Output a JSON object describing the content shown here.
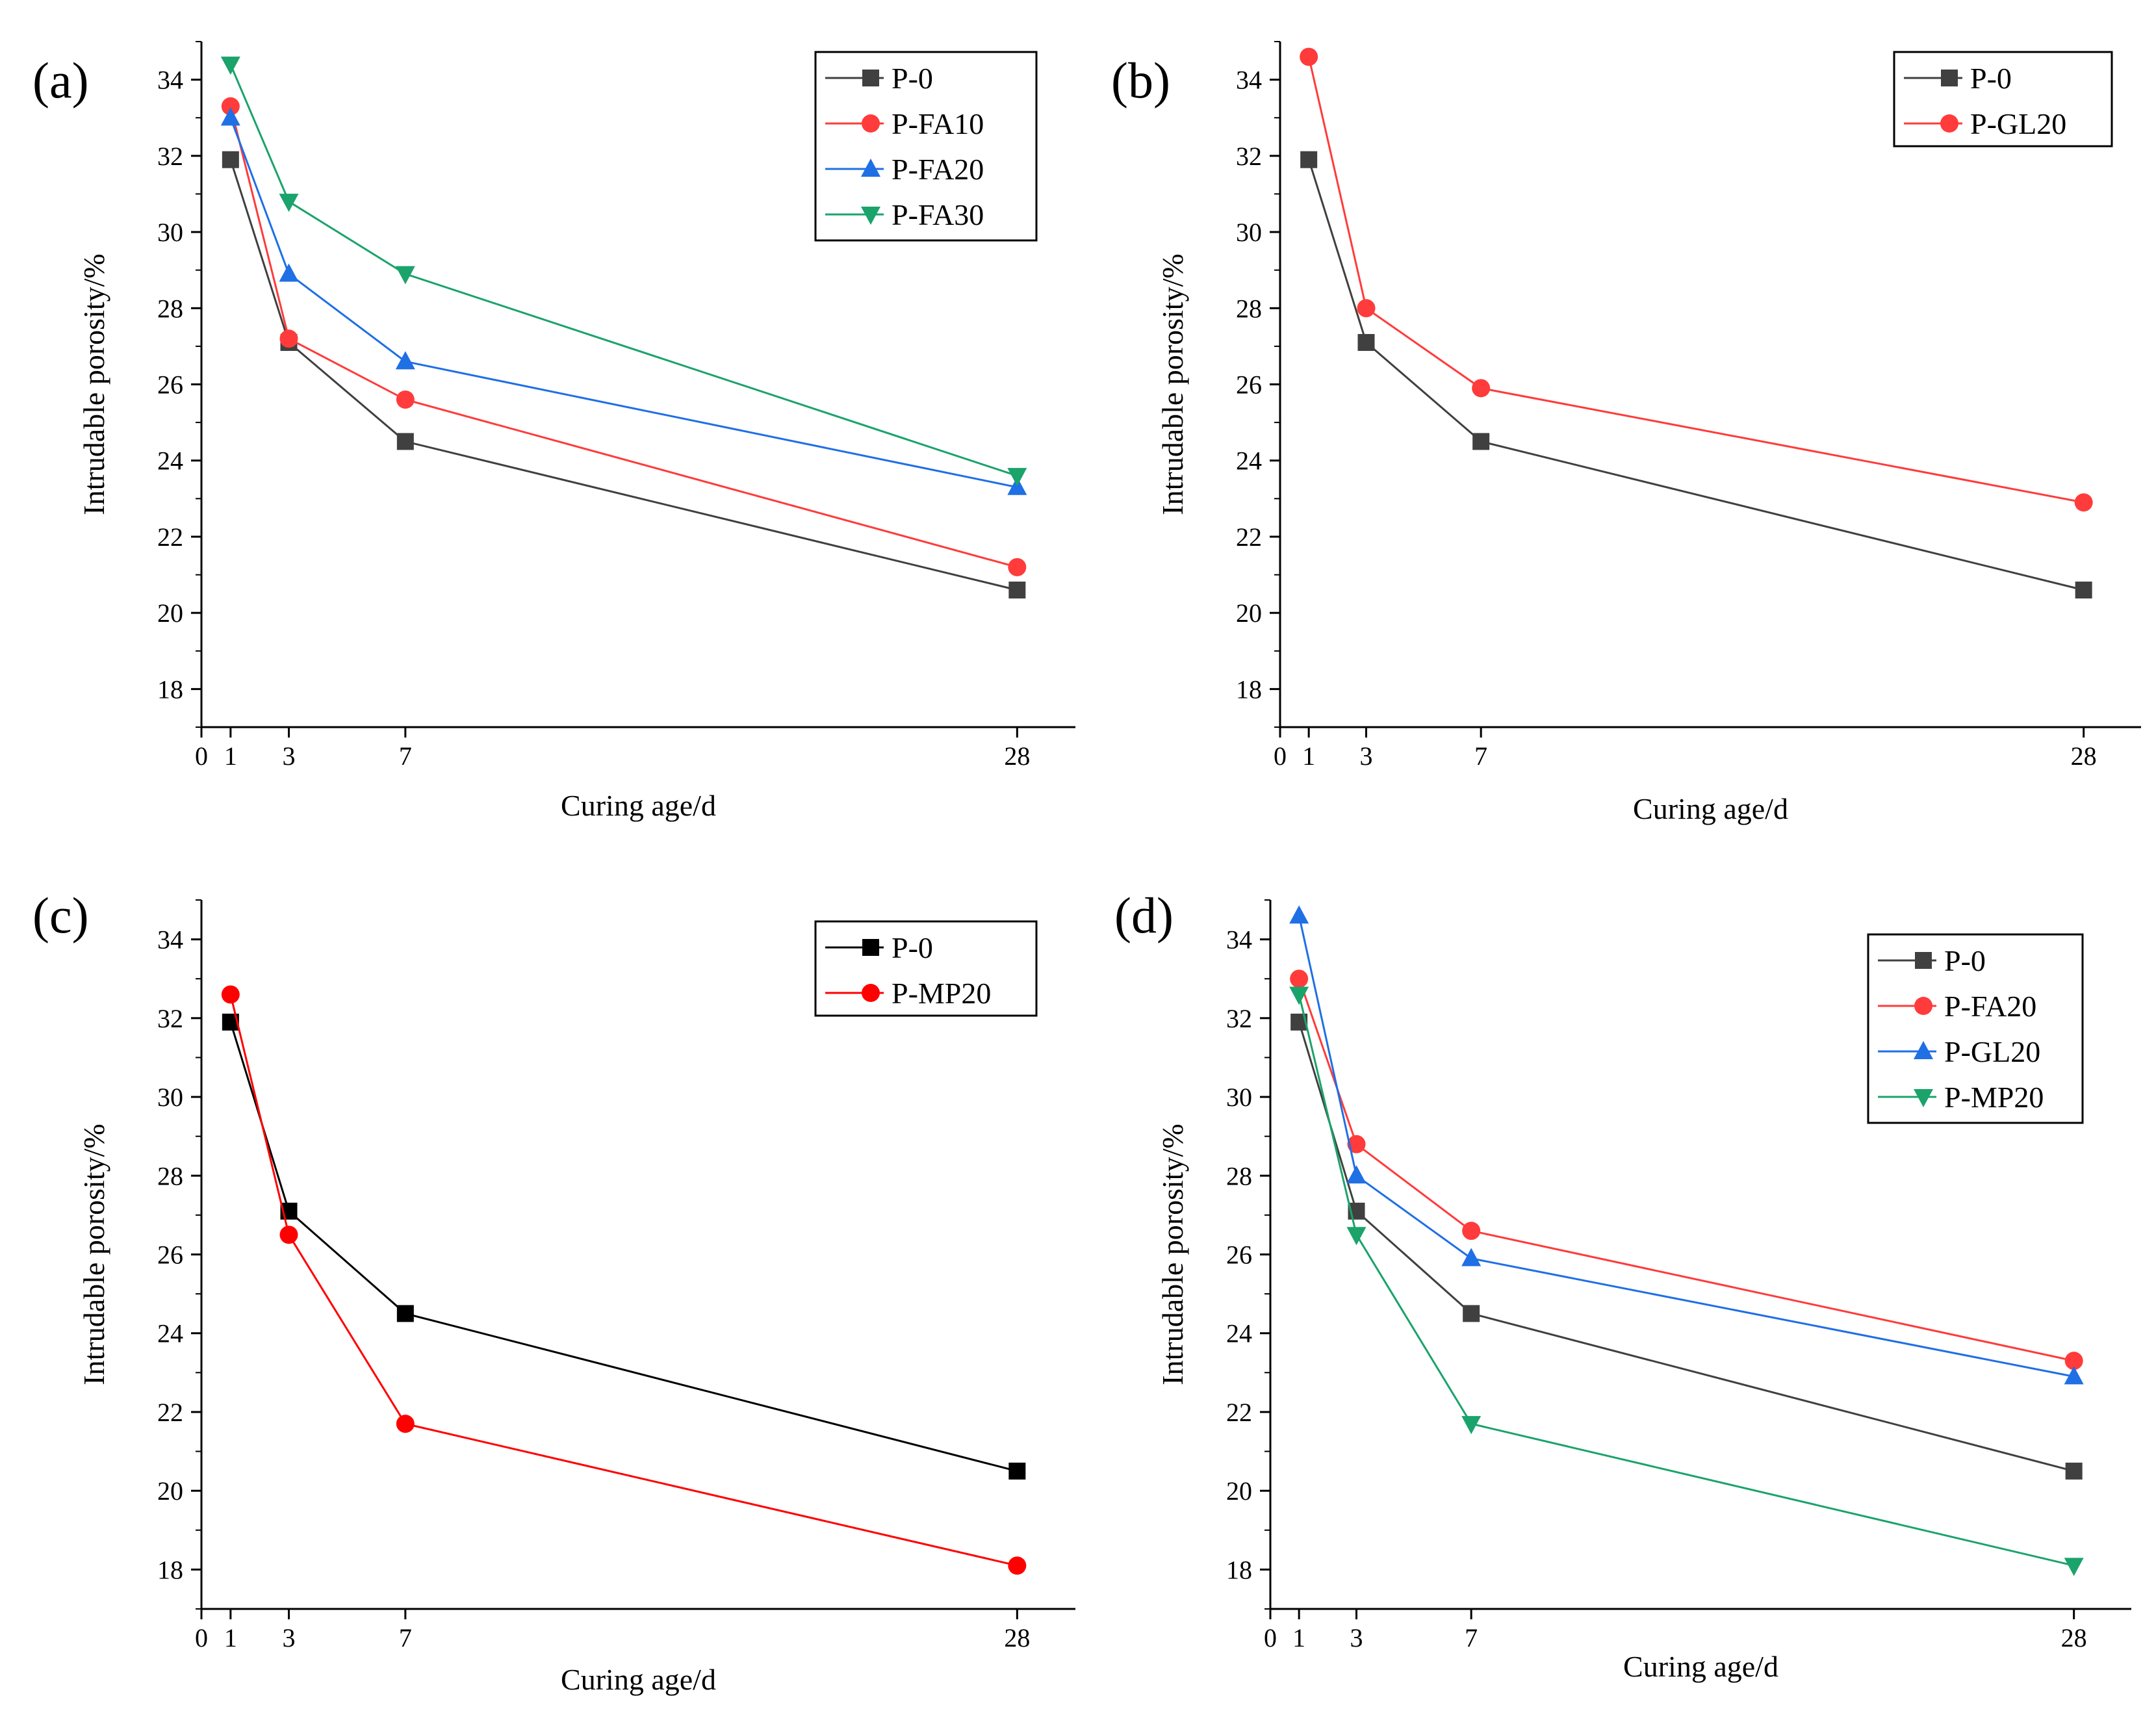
{
  "chart_data": [
    {
      "panel_label": "(a)",
      "type": "line",
      "xlabel": "Curing age/d",
      "ylabel": "Intrudable porosity/%",
      "xlim": [
        0,
        30
      ],
      "ylim": [
        17,
        35
      ],
      "x_ticks": [
        0,
        1,
        3,
        7,
        28
      ],
      "y_ticks": [
        18,
        20,
        22,
        24,
        26,
        28,
        30,
        32,
        34
      ],
      "legend_position": "top-right",
      "x": [
        1,
        3,
        7,
        28
      ],
      "series": [
        {
          "name": "P-0",
          "color": "#404040",
          "marker": "square",
          "values": [
            31.9,
            27.1,
            24.5,
            20.6
          ]
        },
        {
          "name": "P-FA10",
          "color": "#ff3b3b",
          "marker": "circle",
          "values": [
            33.3,
            27.2,
            25.6,
            21.2
          ]
        },
        {
          "name": "P-FA20",
          "color": "#1f6fe5",
          "marker": "triangle-up",
          "values": [
            33.0,
            28.9,
            26.6,
            23.3
          ]
        },
        {
          "name": "P-FA30",
          "color": "#1aa36b",
          "marker": "triangle-down",
          "values": [
            34.4,
            30.8,
            28.9,
            23.6
          ]
        }
      ]
    },
    {
      "panel_label": "(b)",
      "type": "line",
      "xlabel": "Curing age/d",
      "ylabel": "Intrudable porosity/%",
      "xlim": [
        0,
        30
      ],
      "ylim": [
        17,
        35
      ],
      "x_ticks": [
        0,
        1,
        3,
        7,
        28
      ],
      "y_ticks": [
        18,
        20,
        22,
        24,
        26,
        28,
        30,
        32,
        34
      ],
      "legend_position": "top-right",
      "x": [
        1,
        3,
        7,
        28
      ],
      "series": [
        {
          "name": "P-0",
          "color": "#404040",
          "marker": "square",
          "values": [
            31.9,
            27.1,
            24.5,
            20.6
          ]
        },
        {
          "name": "P-GL20",
          "color": "#ff3b3b",
          "marker": "circle",
          "values": [
            34.6,
            28.0,
            25.9,
            22.9
          ]
        }
      ]
    },
    {
      "panel_label": "(c)",
      "type": "line",
      "xlabel": "Curing age/d",
      "ylabel": "Intrudable porosity/%",
      "xlim": [
        0,
        30
      ],
      "ylim": [
        17,
        35
      ],
      "x_ticks": [
        0,
        1,
        3,
        7,
        28
      ],
      "y_ticks": [
        18,
        20,
        22,
        24,
        26,
        28,
        30,
        32,
        34
      ],
      "legend_position": "top-right",
      "x": [
        1,
        3,
        7,
        28
      ],
      "series": [
        {
          "name": "P-0",
          "color": "#000000",
          "marker": "square",
          "values": [
            31.9,
            27.1,
            24.5,
            20.5
          ]
        },
        {
          "name": "P-MP20",
          "color": "#ff0000",
          "marker": "circle",
          "values": [
            32.6,
            26.5,
            21.7,
            18.1
          ]
        }
      ]
    },
    {
      "panel_label": "(d)",
      "type": "line",
      "xlabel": "Curing age/d",
      "ylabel": "Intrudable porosity/%",
      "xlim": [
        0,
        30
      ],
      "ylim": [
        17,
        35
      ],
      "x_ticks": [
        0,
        1,
        3,
        7,
        28
      ],
      "y_ticks": [
        18,
        20,
        22,
        24,
        26,
        28,
        30,
        32,
        34
      ],
      "legend_position": "top-right",
      "x": [
        1,
        3,
        7,
        28
      ],
      "series": [
        {
          "name": "P-0",
          "color": "#404040",
          "marker": "square",
          "values": [
            31.9,
            27.1,
            24.5,
            20.5
          ]
        },
        {
          "name": "P-FA20",
          "color": "#ff3b3b",
          "marker": "circle",
          "values": [
            33.0,
            28.8,
            26.6,
            23.3
          ]
        },
        {
          "name": "P-GL20",
          "color": "#1f6fe5",
          "marker": "triangle-up",
          "values": [
            34.6,
            28.0,
            25.9,
            22.9
          ]
        },
        {
          "name": "P-MP20",
          "color": "#1aa36b",
          "marker": "triangle-down",
          "values": [
            32.6,
            26.5,
            21.7,
            18.1
          ]
        }
      ]
    }
  ]
}
